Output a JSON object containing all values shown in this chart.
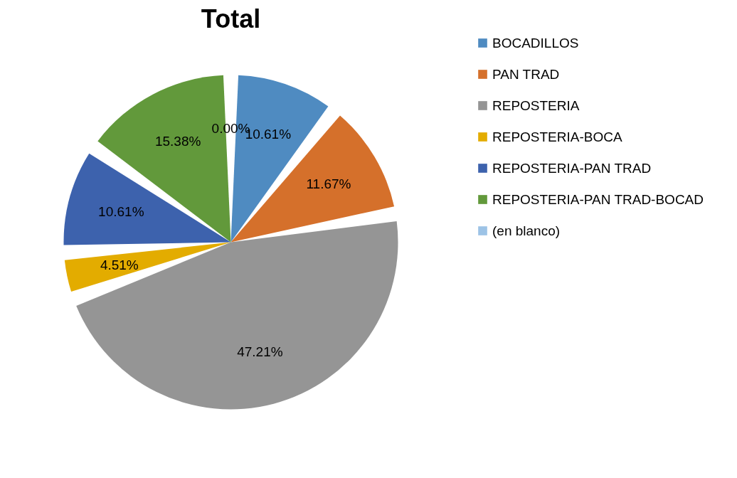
{
  "chart_data": {
    "type": "pie",
    "title": "Total",
    "categories": [
      "BOCADILLOS",
      "PAN TRAD",
      "REPOSTERIA",
      "REPOSTERIA-BOCA",
      "REPOSTERIA-PAN TRAD",
      "REPOSTERIA-PAN TRAD-BOCAD",
      "(en blanco)"
    ],
    "values": [
      10.61,
      11.67,
      47.21,
      4.51,
      10.61,
      15.38,
      0.0
    ],
    "value_labels": [
      "10.61%",
      "11.67%",
      "47.21%",
      "4.51%",
      "10.61%",
      "15.38%",
      "0.00%"
    ],
    "colors": [
      "#4f8bc1",
      "#d5702b",
      "#959595",
      "#e3ac00",
      "#3d62ad",
      "#62993b",
      "#9dc3e6"
    ],
    "legend": "right"
  }
}
